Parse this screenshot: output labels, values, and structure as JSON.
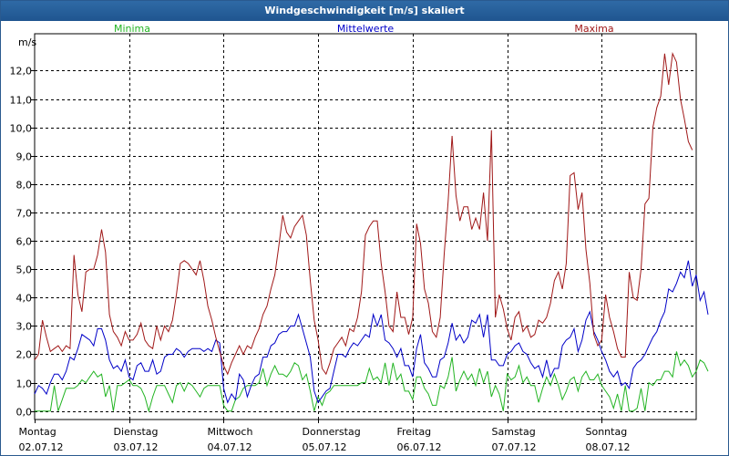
{
  "window": {
    "title": "Windgeschwindigkeit [m/s] skaliert"
  },
  "colors": {
    "min": "#22b422",
    "mean": "#0000c8",
    "max": "#a01818",
    "grid": "#000000"
  },
  "chart_data": {
    "type": "line",
    "title": "Windgeschwindigkeit [m/s] skaliert",
    "ylabel": "m/s",
    "ylim": [
      -0.3,
      13.3
    ],
    "yticks": [
      0,
      1,
      2,
      3,
      4,
      5,
      6,
      7,
      8,
      9,
      10,
      11,
      12
    ],
    "ytick_labels": [
      "0,0",
      "1,0",
      "2,0",
      "3,0",
      "4,0",
      "5,0",
      "6,0",
      "7,0",
      "8,0",
      "9,0",
      "10,0",
      "11,0",
      "12,0"
    ],
    "xlim": [
      0,
      168
    ],
    "day_ticks": [
      0,
      24,
      48,
      72,
      96,
      120,
      144
    ],
    "days": [
      {
        "name": "Montag",
        "date": "02.07.12"
      },
      {
        "name": "Dienstag",
        "date": "03.07.12"
      },
      {
        "name": "Mittwoch",
        "date": "04.07.12"
      },
      {
        "name": "Donnerstag",
        "date": "05.07.12"
      },
      {
        "name": "Freitag",
        "date": "06.07.12"
      },
      {
        "name": "Samstag",
        "date": "07.07.12"
      },
      {
        "name": "Sonntag",
        "date": "08.07.12"
      }
    ],
    "grid": true,
    "sample_interval_hours": 1,
    "series": [
      {
        "key": "min",
        "name": "Minima",
        "values": [
          0,
          0,
          0,
          0,
          0,
          0.9,
          0,
          0.4,
          0.8,
          0.8,
          0.8,
          0.9,
          1.1,
          1,
          1.2,
          1.4,
          1.2,
          1.3,
          0.5,
          0.9,
          0,
          0.9,
          0.9,
          1,
          1.1,
          0.9,
          0.9,
          0.8,
          0.5,
          0,
          0.5,
          0.9,
          0.9,
          0.9,
          0.6,
          0.3,
          0.9,
          1,
          0.7,
          1,
          0.9,
          0.7,
          0.5,
          0.8,
          0.9,
          0.9,
          0.9,
          0.9,
          0.2,
          0,
          0,
          0.4,
          0.5,
          0.8,
          0.9,
          0.9,
          0.9,
          1,
          1.5,
          0.9,
          1.3,
          1.6,
          1.3,
          1.3,
          1.2,
          1.4,
          1.7,
          1.6,
          1.1,
          1.3,
          0.7,
          0,
          0.5,
          0.2,
          0.6,
          0.7,
          0.9,
          0.9,
          0.9,
          0.9,
          0.9,
          0.9,
          0.9,
          1,
          1,
          1.5,
          1.1,
          1.2,
          1,
          1.7,
          0.9,
          1.7,
          1.1,
          1.3,
          0.7,
          0.7,
          0.4,
          1.2,
          1.2,
          0.8,
          0.6,
          0.2,
          0.2,
          0.9,
          0.8,
          1.2,
          1.9,
          0.7,
          1.1,
          1.4,
          1.1,
          1.3,
          0.9,
          1.5,
          1,
          1.4,
          0.5,
          0.9,
          0.6,
          0,
          1.3,
          1.1,
          1.2,
          1.6,
          1,
          1.2,
          0.9,
          0.9,
          0.3,
          0.8,
          1.2,
          0.9,
          1.3,
          0.9,
          0.4,
          0.7,
          1.1,
          1.2,
          0.7,
          1.2,
          1.4,
          1.1,
          1.1,
          1.3,
          0.9,
          0.7,
          0.5,
          0.1,
          0.6,
          0,
          0.9,
          0,
          0,
          0.1,
          0.8,
          0,
          1,
          0.9,
          1.1,
          1.1,
          1.4,
          1.4,
          1.2,
          2.1,
          1.6,
          1.8,
          1.6,
          1.2,
          1.4,
          1.8,
          1.7,
          1.4
        ]
      },
      {
        "key": "mean",
        "name": "Mittelwerte",
        "values": [
          0.6,
          0.9,
          0.8,
          0.6,
          1,
          1.3,
          1.3,
          1.1,
          1.4,
          1.9,
          1.8,
          2.2,
          2.7,
          2.6,
          2.5,
          2.3,
          2.9,
          2.9,
          2.5,
          1.8,
          1.5,
          1.6,
          1.4,
          1.8,
          1.2,
          1.1,
          1.6,
          1.7,
          1.4,
          1.4,
          1.8,
          1.3,
          1.4,
          1.9,
          2,
          2,
          2.2,
          2.1,
          1.9,
          2.1,
          2.2,
          2.2,
          2.2,
          2.1,
          2.2,
          2.1,
          2.5,
          2.4,
          0.8,
          0.3,
          0.6,
          0.4,
          1.3,
          1.1,
          0.5,
          0.9,
          1.2,
          1.3,
          1.9,
          1.9,
          2.3,
          2.4,
          2.7,
          2.8,
          2.8,
          3,
          3,
          3.4,
          2.9,
          2.4,
          1.9,
          0.7,
          0.3,
          0.5,
          0.7,
          0.8,
          1.4,
          2,
          2,
          1.9,
          2.2,
          2.4,
          2.3,
          2.5,
          2.7,
          2.6,
          3.4,
          3,
          3.4,
          2.5,
          2.4,
          2.2,
          1.9,
          2.2,
          1.6,
          1.6,
          1.2,
          2.2,
          2.7,
          1.7,
          1.5,
          1.2,
          1.2,
          1.8,
          1.9,
          2.4,
          3.1,
          2.5,
          2.7,
          2.4,
          2.6,
          3.2,
          3.1,
          3.4,
          2.6,
          3.4,
          1.8,
          1.8,
          1.6,
          1.6,
          2,
          2.1,
          2.3,
          2.4,
          2.1,
          2,
          1.7,
          1.5,
          1.6,
          1.2,
          1.8,
          1.2,
          1.5,
          1.5,
          2.3,
          2.5,
          2.6,
          2.9,
          2.1,
          2.5,
          3.2,
          3.5,
          2.8,
          2.5,
          2.1,
          1.8,
          1.4,
          1.2,
          1.4,
          0.9,
          1,
          0.8,
          1.5,
          1.7,
          1.8,
          2,
          2.3,
          2.6,
          2.8,
          3.2,
          3.5,
          4.3,
          4.2,
          4.5,
          4.9,
          4.7,
          5.3,
          4.4,
          4.8,
          3.9,
          4.2,
          3.4
        ]
      },
      {
        "key": "max",
        "name": "Maxima",
        "values": [
          1.8,
          2,
          3.2,
          2.6,
          2.1,
          2.2,
          2.3,
          2.1,
          2.3,
          2.2,
          5.5,
          4.1,
          3.5,
          4.9,
          5,
          5,
          5.5,
          6.4,
          5.6,
          3.4,
          2.8,
          2.6,
          2.3,
          2.8,
          2.5,
          2.5,
          2.7,
          3.1,
          2.5,
          2.3,
          2.2,
          3,
          2.5,
          3,
          2.8,
          3.2,
          4.1,
          5.2,
          5.3,
          5.2,
          5,
          4.8,
          5.3,
          4.6,
          3.7,
          3.2,
          2.6,
          2.1,
          1.6,
          1.3,
          1.7,
          2,
          2.3,
          2,
          2.3,
          2.2,
          2.6,
          2.9,
          3.4,
          3.7,
          4.3,
          4.8,
          5.8,
          6.9,
          6.3,
          6.1,
          6.5,
          6.7,
          6.9,
          6.2,
          4.6,
          3.2,
          2.5,
          1.5,
          1.3,
          1.7,
          2.2,
          2.4,
          2.6,
          2.3,
          2.9,
          2.8,
          3.3,
          4.2,
          6.2,
          6.5,
          6.7,
          6.7,
          5.2,
          4.2,
          3,
          2.8,
          4.2,
          3.3,
          3.3,
          2.7,
          3.3,
          6.6,
          5.9,
          4.3,
          3.8,
          2.8,
          2.6,
          3.3,
          5.5,
          7.4,
          9.7,
          7.6,
          6.7,
          7.2,
          7.2,
          6.4,
          6.8,
          6.4,
          7.7,
          6,
          9.9,
          3.3,
          4.1,
          3.6,
          2.9,
          2.5,
          3.3,
          3.5,
          2.8,
          3,
          2.6,
          2.7,
          3.2,
          3.1,
          3.3,
          3.8,
          4.6,
          4.9,
          4.3,
          5.2,
          8.3,
          8.4,
          7.1,
          7.7,
          5.7,
          4.5,
          2.7,
          2.3,
          2.5,
          4.1,
          3.3,
          2.8,
          2.2,
          1.9,
          1.9,
          4.9,
          4,
          3.9,
          5,
          7.3,
          7.5,
          10,
          10.7,
          11.1,
          12.6,
          11.5,
          12.6,
          12.3,
          11,
          10.3,
          9.5,
          9.2
        ]
      }
    ]
  }
}
